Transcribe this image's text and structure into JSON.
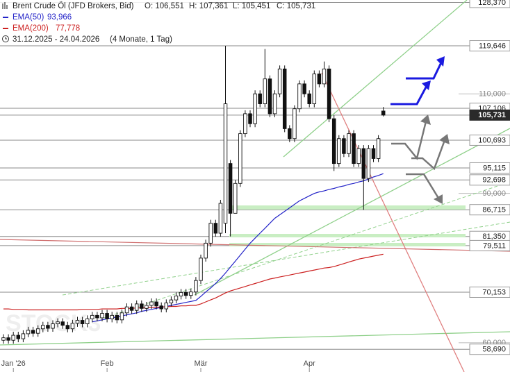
{
  "chart_data": {
    "type": "candlestick",
    "title": "Brent Crude Öl (JFD Brokers, Bid)",
    "ohlc_labels": [
      "O: 106,551",
      "H: 107,361",
      "L: 105,451",
      "C: 105,731"
    ],
    "period": "31.12.2025 - 24.04.2026",
    "period_note": "(4 Monate, 1 Tag)",
    "categories": [
      null,
      null,
      "Jan '26",
      null,
      null,
      null,
      null,
      null,
      null,
      null,
      null,
      null,
      null,
      null,
      null,
      null,
      null,
      null,
      null,
      null,
      null,
      "Feb",
      null,
      null,
      null,
      null,
      null,
      null,
      null,
      null,
      null,
      null,
      null,
      null,
      null,
      null,
      null,
      null,
      null,
      null,
      "Mär",
      null,
      null,
      null,
      null,
      null,
      null,
      null,
      null,
      null,
      null,
      null,
      null,
      null,
      null,
      null,
      null,
      null,
      null,
      null,
      null,
      null,
      "Apr",
      null,
      null,
      null,
      null,
      null,
      null,
      null,
      null,
      null,
      null,
      null,
      null,
      null,
      null,
      null
    ],
    "open": [
      60.5,
      61.0,
      60.5,
      61.5,
      60.8,
      61.8,
      62.5,
      61.9,
      62.8,
      63.5,
      62.9,
      63.8,
      64.2,
      63.5,
      62.8,
      63.9,
      64.5,
      63.8,
      64.8,
      65.5,
      65.0,
      65.9,
      64.8,
      65.5,
      64.6,
      66.0,
      67.2,
      66.5,
      67.8,
      66.9,
      67.5,
      68.2,
      67.4,
      66.8,
      68.0,
      68.6,
      69.4,
      70.1,
      69.5,
      70.2,
      72.5,
      77.0,
      80.0,
      84.0,
      82.0,
      84.0,
      96.0,
      86.0,
      92.0,
      102.0,
      106.0,
      104.0,
      110.0,
      108.0,
      113.0,
      106.0,
      110.0,
      115.0,
      103.0,
      101.0,
      107.0,
      112.0,
      110.0,
      108.0,
      114.0,
      112.0,
      115.0,
      105.0,
      96.0,
      101.0,
      98.0,
      102.0,
      96.0,
      99.0,
      93.0,
      99.0,
      97.0,
      106.551
    ],
    "high": [
      61.7,
      61.7,
      62.2,
      62.2,
      62.5,
      63.2,
      63.2,
      63.5,
      64.2,
      64.2,
      64.5,
      64.9,
      64.9,
      64.2,
      64.6,
      65.2,
      65.2,
      65.5,
      66.2,
      66.2,
      66.6,
      66.6,
      66.2,
      66.2,
      66.7,
      67.9,
      67.9,
      68.5,
      68.5,
      68.2,
      68.9,
      68.9,
      68.1,
      68.7,
      69.3,
      70.1,
      70.8,
      70.8,
      70.9,
      73.2,
      77.7,
      80.7,
      84.7,
      84.7,
      88.7,
      119.646,
      96.7,
      92.7,
      102.7,
      106.7,
      106.7,
      110.7,
      110.7,
      119.0,
      113.7,
      110.7,
      115.7,
      115.7,
      103.7,
      107.7,
      112.7,
      112.7,
      110.7,
      114.7,
      114.7,
      116.5,
      115.7,
      105.7,
      101.7,
      101.7,
      102.7,
      102.7,
      99.7,
      99.7,
      99.7,
      99.7,
      101.7,
      107.361
    ],
    "low": [
      59.8,
      59.8,
      59.8,
      60.1,
      60.1,
      61.1,
      61.2,
      61.2,
      62.1,
      62.2,
      62.2,
      63.1,
      62.8,
      62.1,
      62.1,
      63.2,
      63.1,
      63.1,
      64.1,
      64.3,
      64.3,
      64.1,
      64.1,
      63.9,
      63.9,
      65.3,
      65.8,
      65.8,
      66.2,
      66.2,
      66.8,
      66.7,
      66.1,
      66.1,
      67.3,
      67.9,
      68.7,
      68.8,
      68.8,
      69.5,
      71.8,
      76.3,
      79.3,
      81.3,
      81.3,
      82.0,
      81.35,
      86.715,
      91.3,
      101.3,
      103.3,
      103.3,
      107.3,
      107.3,
      105.3,
      105.3,
      109.3,
      102.3,
      100.3,
      100.3,
      106.3,
      109.3,
      107.3,
      107.3,
      111.3,
      111.3,
      104.3,
      94.5,
      95.3,
      97.3,
      97.3,
      95.3,
      95.3,
      86.7,
      92.3,
      96.3,
      96.3,
      105.451
    ],
    "close": [
      61.0,
      60.5,
      61.5,
      60.8,
      61.8,
      62.5,
      61.9,
      62.8,
      63.5,
      62.9,
      63.8,
      64.2,
      63.5,
      62.8,
      63.9,
      64.5,
      63.8,
      64.8,
      65.5,
      65.0,
      65.9,
      64.8,
      65.5,
      64.6,
      66.0,
      67.2,
      66.5,
      67.8,
      66.9,
      67.5,
      68.2,
      67.4,
      66.8,
      68.0,
      68.6,
      69.4,
      70.1,
      69.5,
      70.2,
      72.5,
      77.0,
      80.0,
      84.0,
      82.0,
      88.0,
      108.0,
      86.0,
      92.0,
      102.0,
      106.0,
      104.0,
      110.0,
      108.0,
      113.0,
      106.0,
      110.0,
      115.0,
      103.0,
      101.0,
      107.0,
      112.0,
      110.0,
      108.0,
      114.0,
      112.0,
      115.0,
      105.0,
      96.0,
      101.0,
      98.0,
      102.0,
      96.0,
      99.0,
      93.0,
      99.0,
      97.0,
      101.0,
      105.731
    ],
    "series": [
      {
        "name": "EMA(50)",
        "color": "#2323c8",
        "last_label": "93,966",
        "values": [
          null,
          null,
          null,
          null,
          null,
          null,
          null,
          null,
          null,
          null,
          null,
          null,
          null,
          null,
          null,
          null,
          null,
          null,
          64.2,
          64.4,
          64.6,
          64.8,
          65.0,
          65.2,
          65.4,
          65.6,
          65.8,
          66.0,
          66.3,
          66.5,
          66.7,
          66.9,
          67.1,
          67.3,
          67.5,
          67.7,
          67.9,
          68.1,
          68.3,
          68.5,
          69.3,
          70.2,
          71.0,
          71.9,
          72.9,
          74.0,
          75.2,
          76.4,
          77.6,
          78.8,
          80.0,
          81.0,
          82.0,
          83.0,
          84.0,
          85.0,
          85.7,
          86.4,
          87.1,
          87.8,
          88.5,
          89.0,
          89.5,
          90.0,
          90.3,
          90.5,
          90.8,
          91.0,
          91.3,
          91.5,
          91.8,
          92.0,
          92.3,
          92.5,
          92.9,
          93.3,
          93.6,
          93.966
        ]
      },
      {
        "name": "EMA(200)",
        "color": "#cc2020",
        "last_label": "77,778",
        "values": [
          66.8,
          66.8,
          66.7,
          66.7,
          66.7,
          66.6,
          66.6,
          66.6,
          66.6,
          66.6,
          66.6,
          66.6,
          66.6,
          66.6,
          66.6,
          66.6,
          66.7,
          66.7,
          66.7,
          66.7,
          66.8,
          66.8,
          66.8,
          66.8,
          66.9,
          66.9,
          66.9,
          67.0,
          67.0,
          67.0,
          67.1,
          67.1,
          67.2,
          67.2,
          67.3,
          67.3,
          67.4,
          67.4,
          67.5,
          67.5,
          67.8,
          68.2,
          68.6,
          69.0,
          69.5,
          70.0,
          70.4,
          70.7,
          71.0,
          71.3,
          71.6,
          71.9,
          72.2,
          72.5,
          72.8,
          73.0,
          73.2,
          73.4,
          73.6,
          73.8,
          74.0,
          74.2,
          74.4,
          74.6,
          74.8,
          75.0,
          75.1,
          75.3,
          75.6,
          75.9,
          76.2,
          76.5,
          76.8,
          77.0,
          77.2,
          77.4,
          77.6,
          77.778
        ]
      }
    ],
    "ylim": [
      54.12,
      128.85
    ],
    "yticks": [
      {
        "value": 128.37,
        "label": "128,370"
      },
      {
        "value": 119.646,
        "label": "119,646"
      },
      {
        "value": 110,
        "label": "110,000"
      },
      {
        "value": 107.106,
        "label": "107,106"
      },
      {
        "value": 105.731,
        "label": "105,731"
      },
      {
        "value": 100.693,
        "label": "100,693"
      },
      {
        "value": 95.115,
        "label": "95,115"
      },
      {
        "value": 92.698,
        "label": "92,698"
      },
      {
        "value": 90,
        "label": "90,000"
      },
      {
        "value": 86.715,
        "label": "86,715"
      },
      {
        "value": 81.35,
        "label": "81,350"
      },
      {
        "value": 79.511,
        "label": "79,511"
      },
      {
        "value": 70.153,
        "label": "70,153"
      },
      {
        "value": 60,
        "label": "60,000"
      },
      {
        "value": 58.69,
        "label": "58,690"
      }
    ]
  }
}
